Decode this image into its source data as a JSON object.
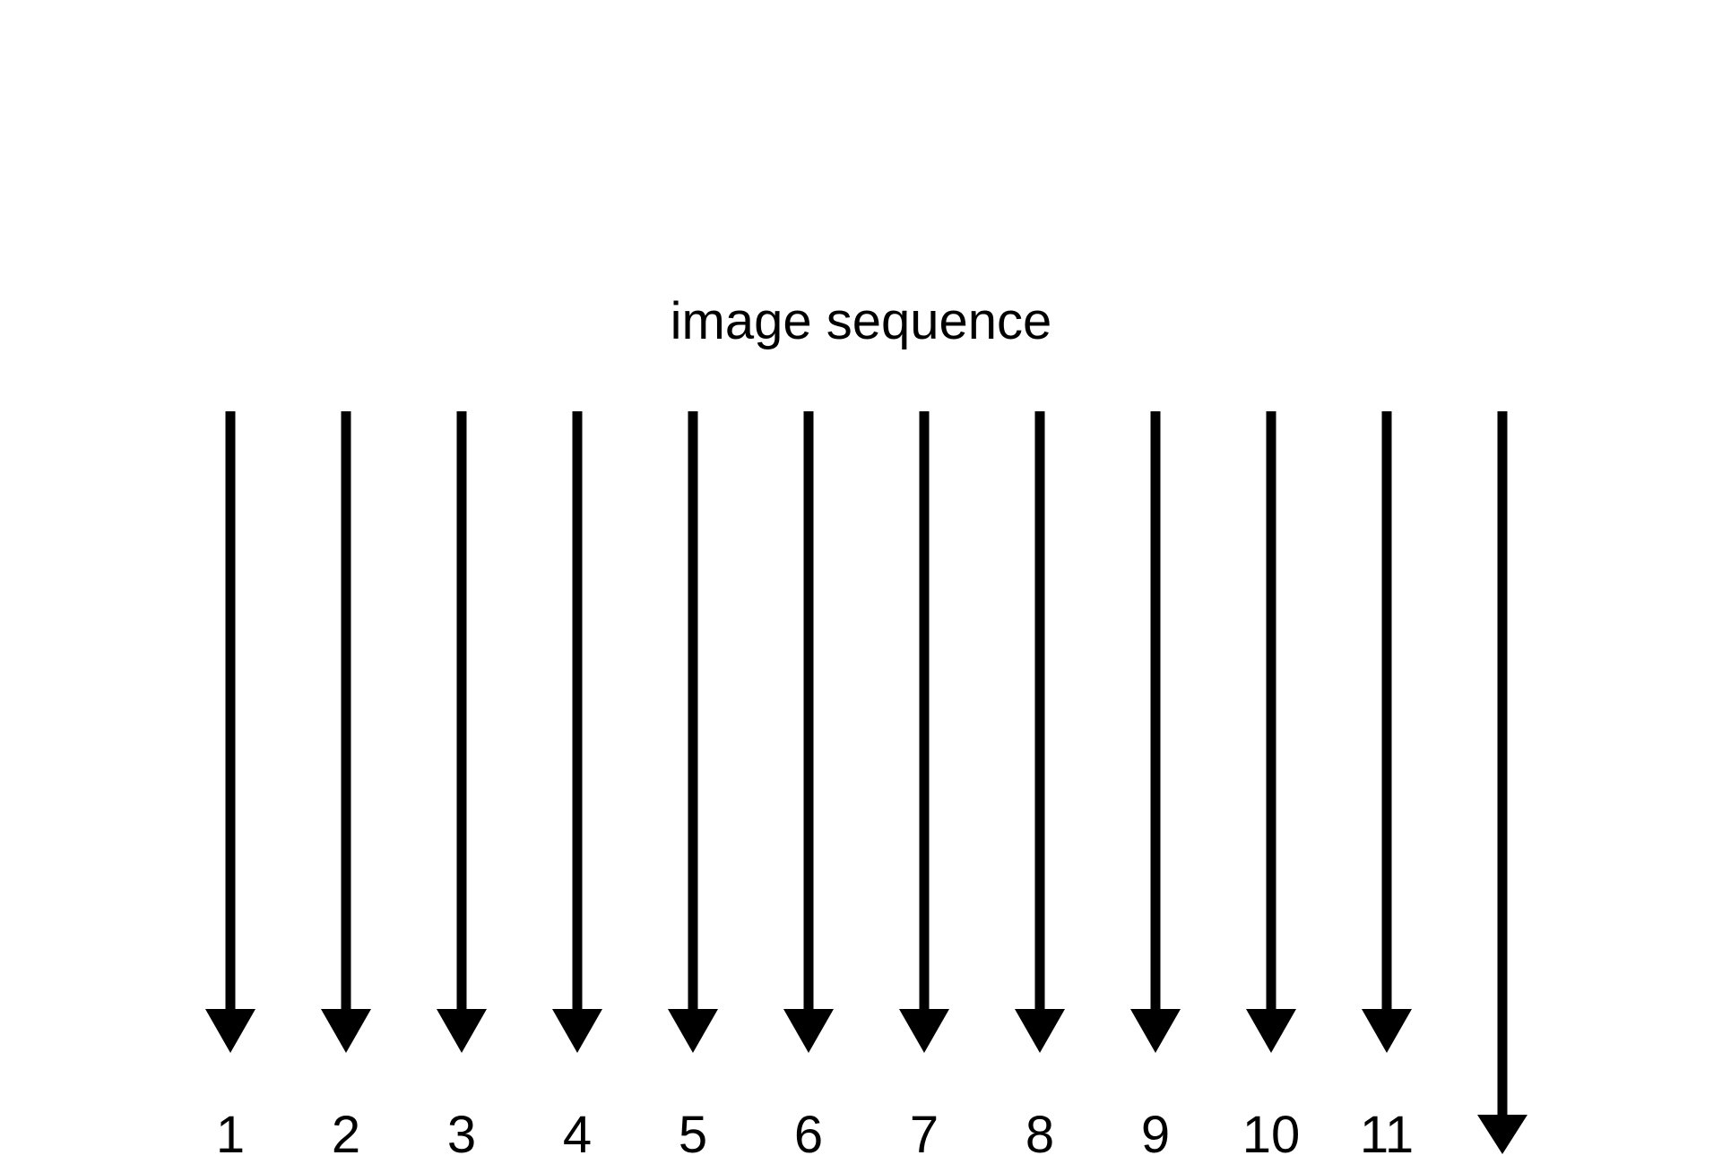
{
  "title": "image sequence",
  "frames": [
    {
      "label": "1"
    },
    {
      "label": "2"
    },
    {
      "label": "3"
    },
    {
      "label": "4"
    },
    {
      "label": "5"
    },
    {
      "label": "6"
    },
    {
      "label": "7"
    },
    {
      "label": "8"
    },
    {
      "label": "9"
    },
    {
      "label": "10"
    },
    {
      "label": "11"
    }
  ],
  "colors": {
    "stroke": "#000000",
    "background": "#ffffff"
  }
}
